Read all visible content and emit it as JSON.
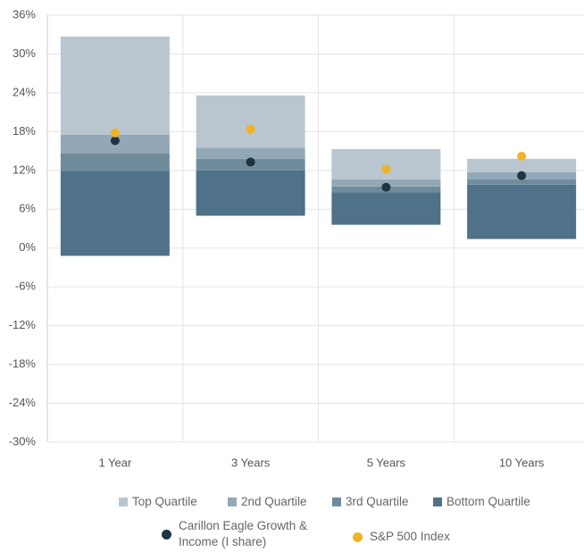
{
  "chart_data": {
    "type": "floating_stacked_bar",
    "categories": [
      "1 Year",
      "3 Years",
      "5 Years",
      "10 Years"
    ],
    "base": [
      -1.2,
      5.0,
      3.6,
      1.4
    ],
    "series": [
      {
        "name": "Top Quartile",
        "color": "#b9c6d0",
        "values": [
          15.2,
          8.1,
          4.7,
          2.1
        ]
      },
      {
        "name": "2nd Quartile",
        "color": "#93a8b6",
        "values": [
          2.9,
          1.7,
          1.1,
          1.1
        ]
      },
      {
        "name": "3rd Quartile",
        "color": "#6f8b9c",
        "values": [
          2.7,
          1.8,
          0.9,
          0.8
        ]
      },
      {
        "name": "Bottom Quartile",
        "color": "#4f7189",
        "values": [
          13.1,
          7.0,
          5.0,
          8.4
        ]
      }
    ],
    "points": [
      {
        "name": "Carillon Eagle Growth & Income (I share)",
        "color": "#1d3545",
        "values": [
          16.6,
          13.3,
          9.4,
          11.2
        ]
      },
      {
        "name": "S&P 500 Index",
        "color": "#f0b323",
        "values": [
          17.8,
          18.4,
          12.2,
          14.2
        ]
      }
    ],
    "ylim": [
      -30,
      36
    ],
    "yticks": [
      {
        "value": -30,
        "label": "-30%"
      },
      {
        "value": -24,
        "label": "-24%"
      },
      {
        "value": -18,
        "label": "-18%"
      },
      {
        "value": -12,
        "label": "-12%"
      },
      {
        "value": -6,
        "label": "-6%"
      },
      {
        "value": 0,
        "label": "0%"
      },
      {
        "value": 6,
        "label": "6%"
      },
      {
        "value": 12,
        "label": "12%"
      },
      {
        "value": 18,
        "label": "18%"
      },
      {
        "value": 24,
        "label": "24%"
      },
      {
        "value": 30,
        "label": "30%"
      },
      {
        "value": 36,
        "label": "36%"
      }
    ],
    "grid": true
  }
}
